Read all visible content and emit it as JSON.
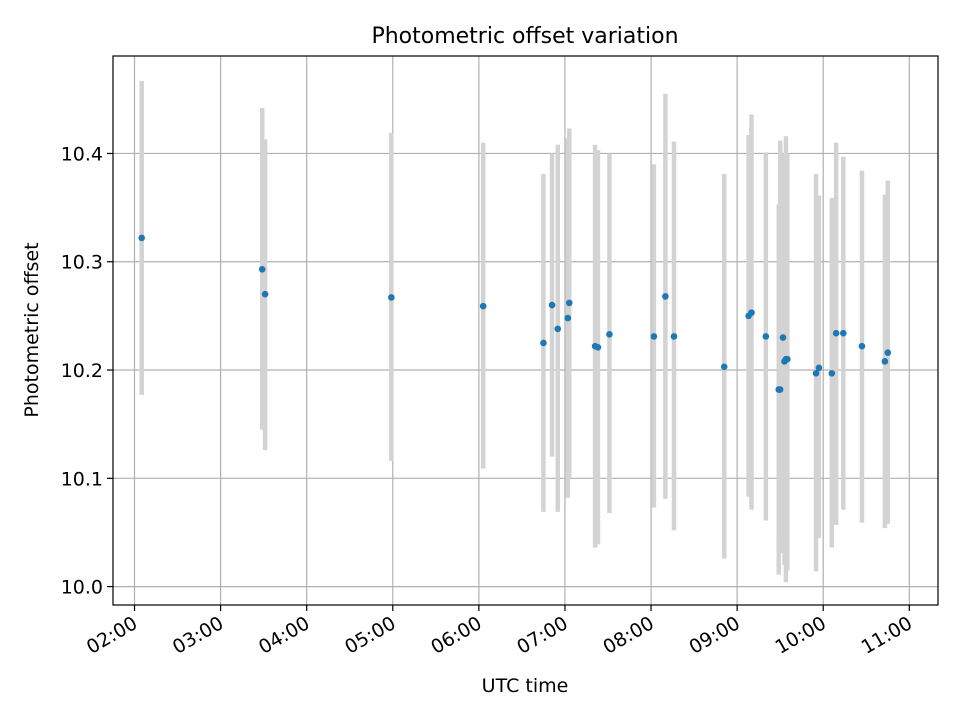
{
  "chart_data": {
    "type": "scatter",
    "title": "Photometric offset variation",
    "xlabel": "UTC time",
    "ylabel": "Photometric offset",
    "x_ticks": [
      "02:00",
      "03:00",
      "04:00",
      "05:00",
      "06:00",
      "07:00",
      "08:00",
      "09:00",
      "10:00",
      "11:00"
    ],
    "y_ticks": [
      "10.0",
      "10.1",
      "10.2",
      "10.3",
      "10.4"
    ],
    "xlim": [
      "01:45",
      "11:20"
    ],
    "ylim": [
      9.983,
      10.49
    ],
    "grid": true,
    "errorbar_color": "#d3d3d3",
    "marker_color": "#1f77b4",
    "points": [
      {
        "x": "02:05",
        "y": 10.322,
        "lo": 10.177,
        "hi": 10.467
      },
      {
        "x": "03:29",
        "y": 10.293,
        "lo": 10.145,
        "hi": 10.442
      },
      {
        "x": "03:31",
        "y": 10.27,
        "lo": 10.126,
        "hi": 10.413
      },
      {
        "x": "04:59",
        "y": 10.267,
        "lo": 10.116,
        "hi": 10.419
      },
      {
        "x": "06:03",
        "y": 10.259,
        "lo": 10.109,
        "hi": 10.41
      },
      {
        "x": "06:45",
        "y": 10.225,
        "lo": 10.069,
        "hi": 10.381
      },
      {
        "x": "06:51",
        "y": 10.26,
        "lo": 10.12,
        "hi": 10.4
      },
      {
        "x": "06:55",
        "y": 10.238,
        "lo": 10.069,
        "hi": 10.408
      },
      {
        "x": "07:02",
        "y": 10.248,
        "lo": 10.082,
        "hi": 10.414
      },
      {
        "x": "07:03",
        "y": 10.262,
        "lo": 10.101,
        "hi": 10.423
      },
      {
        "x": "07:21",
        "y": 10.222,
        "lo": 10.036,
        "hi": 10.408
      },
      {
        "x": "07:23",
        "y": 10.221,
        "lo": 10.039,
        "hi": 10.403
      },
      {
        "x": "07:31",
        "y": 10.233,
        "lo": 10.068,
        "hi": 10.4
      },
      {
        "x": "08:02",
        "y": 10.231,
        "lo": 10.073,
        "hi": 10.39
      },
      {
        "x": "08:10",
        "y": 10.268,
        "lo": 10.081,
        "hi": 10.455
      },
      {
        "x": "08:16",
        "y": 10.231,
        "lo": 10.052,
        "hi": 10.411
      },
      {
        "x": "08:51",
        "y": 10.203,
        "lo": 10.026,
        "hi": 10.381
      },
      {
        "x": "09:08",
        "y": 10.25,
        "lo": 10.083,
        "hi": 10.417
      },
      {
        "x": "09:10",
        "y": 10.253,
        "lo": 10.071,
        "hi": 10.436
      },
      {
        "x": "09:20",
        "y": 10.231,
        "lo": 10.061,
        "hi": 10.401
      },
      {
        "x": "09:29",
        "y": 10.182,
        "lo": 10.011,
        "hi": 10.353
      },
      {
        "x": "09:30",
        "y": 10.182,
        "lo": 10.048,
        "hi": 10.412
      },
      {
        "x": "09:32",
        "y": 10.23,
        "lo": 10.031,
        "hi": 10.4
      },
      {
        "x": "09:33",
        "y": 10.208,
        "lo": 10.02,
        "hi": 10.395
      },
      {
        "x": "09:34",
        "y": 10.21,
        "lo": 10.004,
        "hi": 10.416
      },
      {
        "x": "09:35",
        "y": 10.21,
        "lo": 10.015,
        "hi": 10.4
      },
      {
        "x": "09:55",
        "y": 10.197,
        "lo": 10.014,
        "hi": 10.381
      },
      {
        "x": "09:57",
        "y": 10.202,
        "lo": 10.045,
        "hi": 10.361
      },
      {
        "x": "10:06",
        "y": 10.197,
        "lo": 10.036,
        "hi": 10.359
      },
      {
        "x": "10:09",
        "y": 10.234,
        "lo": 10.057,
        "hi": 10.41
      },
      {
        "x": "10:14",
        "y": 10.234,
        "lo": 10.071,
        "hi": 10.397
      },
      {
        "x": "10:27",
        "y": 10.222,
        "lo": 10.059,
        "hi": 10.384
      },
      {
        "x": "10:43",
        "y": 10.208,
        "lo": 10.054,
        "hi": 10.362
      },
      {
        "x": "10:45",
        "y": 10.216,
        "lo": 10.058,
        "hi": 10.375
      }
    ]
  }
}
